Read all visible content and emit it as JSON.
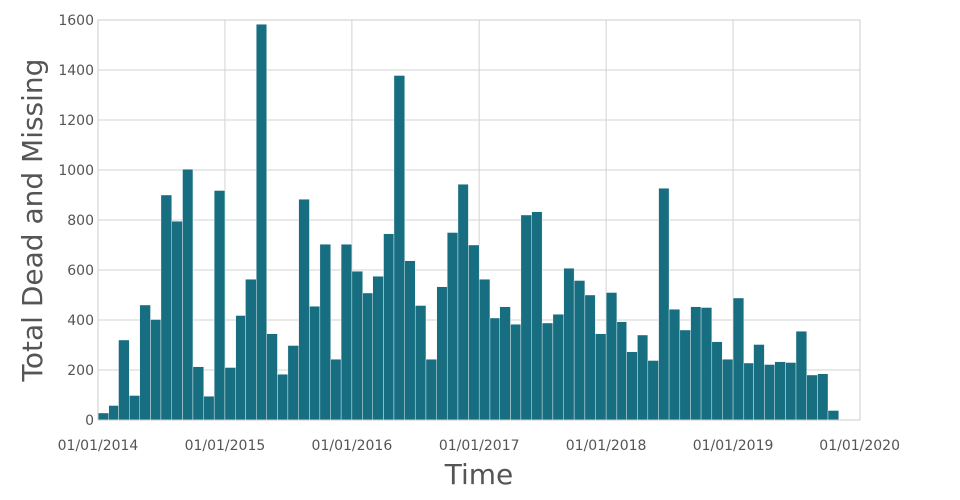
{
  "chart_data": {
    "type": "bar",
    "xlabel": "Time",
    "ylabel": "Total Dead and Missing",
    "ylim": [
      0,
      1600
    ],
    "y_ticks": [
      0,
      200,
      400,
      600,
      800,
      1000,
      1200,
      1400,
      1600
    ],
    "y_tick_labels": [
      "0",
      "200",
      "400",
      "600",
      "800",
      "1000",
      "1200",
      "1400",
      "1600"
    ],
    "x_range": [
      "2014-01-01",
      "2020-01-01"
    ],
    "x_ticks": [
      "2014-01-01",
      "2015-01-01",
      "2016-01-01",
      "2017-01-01",
      "2018-01-01",
      "2019-01-01",
      "2020-01-01"
    ],
    "x_tick_labels": [
      "01/01/2014",
      "01/01/2015",
      "01/01/2016",
      "01/01/2017",
      "01/01/2018",
      "01/01/2019",
      "01/01/2020"
    ],
    "grid": true,
    "bar_color": "#166e80",
    "bin": "month",
    "x": [
      "2014-01",
      "2014-02",
      "2014-03",
      "2014-04",
      "2014-05",
      "2014-06",
      "2014-07",
      "2014-08",
      "2014-09",
      "2014-10",
      "2014-11",
      "2014-12",
      "2015-01",
      "2015-02",
      "2015-03",
      "2015-04",
      "2015-05",
      "2015-06",
      "2015-07",
      "2015-08",
      "2015-09",
      "2015-10",
      "2015-11",
      "2015-12",
      "2016-01",
      "2016-02",
      "2016-03",
      "2016-04",
      "2016-05",
      "2016-06",
      "2016-07",
      "2016-08",
      "2016-09",
      "2016-10",
      "2016-11",
      "2016-12",
      "2017-01",
      "2017-02",
      "2017-03",
      "2017-04",
      "2017-05",
      "2017-06",
      "2017-07",
      "2017-08",
      "2017-09",
      "2017-10",
      "2017-11",
      "2017-12",
      "2018-01",
      "2018-02",
      "2018-03",
      "2018-04",
      "2018-05",
      "2018-06",
      "2018-07",
      "2018-08",
      "2018-09",
      "2018-10",
      "2018-11",
      "2018-12",
      "2019-01",
      "2019-02",
      "2019-03",
      "2019-04",
      "2019-05",
      "2019-06",
      "2019-07",
      "2019-08",
      "2019-09",
      "2019-10",
      "2019-11"
    ],
    "values": [
      28,
      58,
      320,
      98,
      460,
      402,
      900,
      795,
      1003,
      213,
      95,
      918,
      210,
      418,
      563,
      1583,
      345,
      183,
      298,
      883,
      455,
      703,
      243,
      703,
      595,
      508,
      575,
      745,
      1378,
      637,
      458,
      243,
      533,
      750,
      943,
      700,
      563,
      408,
      453,
      383,
      820,
      833,
      388,
      423,
      607,
      558,
      500,
      345,
      510,
      393,
      273,
      340,
      238,
      927,
      443,
      360,
      453,
      450,
      313,
      243,
      488,
      228,
      302,
      222,
      233,
      230,
      355,
      180,
      185,
      38,
      0
    ]
  }
}
